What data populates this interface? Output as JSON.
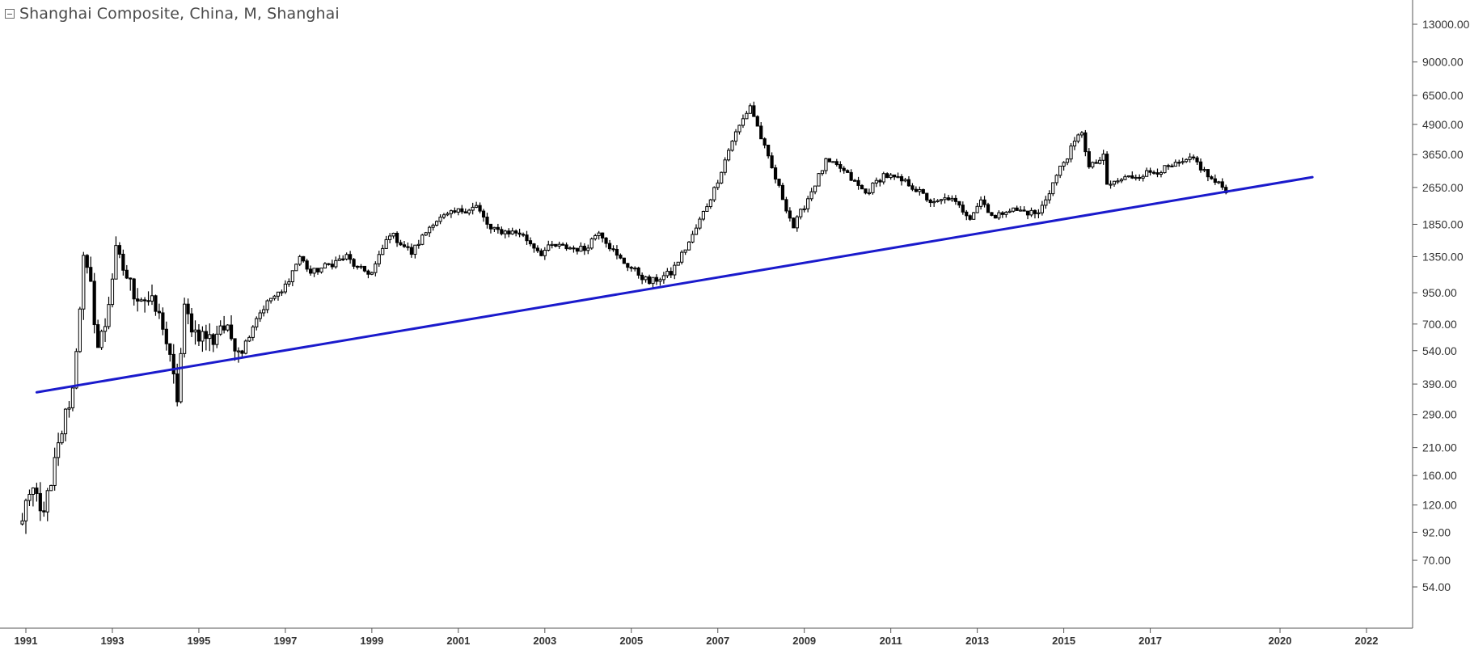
{
  "header": {
    "title": "Shanghai Composite, China, M, Shanghai",
    "collapse_icon": "collapse-minus-icon"
  },
  "colors": {
    "trendline": "#1a1acc",
    "candle": "#000000",
    "axis": "#555555",
    "label": "#333333"
  },
  "chart_data": {
    "type": "candlestick",
    "title": "Shanghai Composite, China, M, Shanghai",
    "interval": "M",
    "y_scale": "log",
    "grid": false,
    "x_tick_labels": [
      "1991",
      "1993",
      "1995",
      "1997",
      "1999",
      "2001",
      "2003",
      "2005",
      "2007",
      "2009",
      "2011",
      "2013",
      "2015",
      "2017",
      "2020",
      "2022"
    ],
    "y_tick_labels": [
      "13000.00",
      "9000.00",
      "6500.00",
      "4900.00",
      "3650.00",
      "2650.00",
      "1850.00",
      "1350.00",
      "950.00",
      "700.00",
      "540.00",
      "390.00",
      "290.00",
      "210.00",
      "160.00",
      "120.00",
      "92.00",
      "70.00",
      "54.00"
    ],
    "x_range": [
      "1990-12",
      "2022-12"
    ],
    "y_range": [
      50,
      15000
    ],
    "price_path": [
      [
        "1990-12",
        100
      ],
      [
        "1991-01",
        130
      ],
      [
        "1991-04",
        130
      ],
      [
        "1991-05",
        110
      ],
      [
        "1991-08",
        140
      ],
      [
        "1991-09",
        180
      ],
      [
        "1991-12",
        290
      ],
      [
        "1992-02",
        370
      ],
      [
        "1992-05",
        1300
      ],
      [
        "1992-07",
        1000
      ],
      [
        "1992-09",
        560
      ],
      [
        "1992-11",
        700
      ],
      [
        "1993-02",
        1400
      ],
      [
        "1993-04",
        1200
      ],
      [
        "1993-07",
        950
      ],
      [
        "1993-10",
        900
      ],
      [
        "1993-12",
        850
      ],
      [
        "1994-03",
        700
      ],
      [
        "1994-07",
        340
      ],
      [
        "1994-09",
        800
      ],
      [
        "1994-12",
        650
      ],
      [
        "1995-05",
        600
      ],
      [
        "1995-07",
        700
      ],
      [
        "1996-01",
        540
      ],
      [
        "1996-05",
        750
      ],
      [
        "1996-09",
        900
      ],
      [
        "1996-12",
        950
      ],
      [
        "1997-05",
        1350
      ],
      [
        "1997-08",
        1150
      ],
      [
        "1998-06",
        1350
      ],
      [
        "1998-09",
        1200
      ],
      [
        "1999-01",
        1150
      ],
      [
        "1999-06",
        1700
      ],
      [
        "1999-12",
        1400
      ],
      [
        "2000-06",
        1900
      ],
      [
        "2001-01",
        2100
      ],
      [
        "2001-06",
        2200
      ],
      [
        "2001-10",
        1750
      ],
      [
        "2002-06",
        1700
      ],
      [
        "2002-12",
        1400
      ],
      [
        "2003-03",
        1500
      ],
      [
        "2003-12",
        1450
      ],
      [
        "2004-04",
        1750
      ],
      [
        "2004-09",
        1350
      ],
      [
        "2005-06",
        1050
      ],
      [
        "2005-12",
        1150
      ],
      [
        "2006-06",
        1650
      ],
      [
        "2006-12",
        2600
      ],
      [
        "2007-05",
        4200
      ],
      [
        "2007-10",
        5900
      ],
      [
        "2008-03",
        3500
      ],
      [
        "2008-10",
        1800
      ],
      [
        "2009-07",
        3400
      ],
      [
        "2009-11",
        3200
      ],
      [
        "2010-06",
        2500
      ],
      [
        "2010-11",
        3000
      ],
      [
        "2011-06",
        2750
      ],
      [
        "2012-01",
        2250
      ],
      [
        "2012-05",
        2400
      ],
      [
        "2012-11",
        2000
      ],
      [
        "2013-02",
        2350
      ],
      [
        "2013-06",
        1950
      ],
      [
        "2013-09",
        2150
      ],
      [
        "2014-06",
        2050
      ],
      [
        "2014-12",
        3200
      ],
      [
        "2015-06",
        4600
      ],
      [
        "2015-08",
        3200
      ],
      [
        "2015-12",
        3550
      ],
      [
        "2016-01",
        2700
      ],
      [
        "2016-06",
        2900
      ],
      [
        "2017-06",
        3200
      ],
      [
        "2017-11",
        3400
      ],
      [
        "2018-01",
        3500
      ],
      [
        "2018-06",
        2850
      ],
      [
        "2018-10",
        2600
      ]
    ],
    "trendline": {
      "label": "",
      "start": [
        "1991-04",
        360
      ],
      "end": [
        "2020-10",
        2930
      ]
    }
  }
}
